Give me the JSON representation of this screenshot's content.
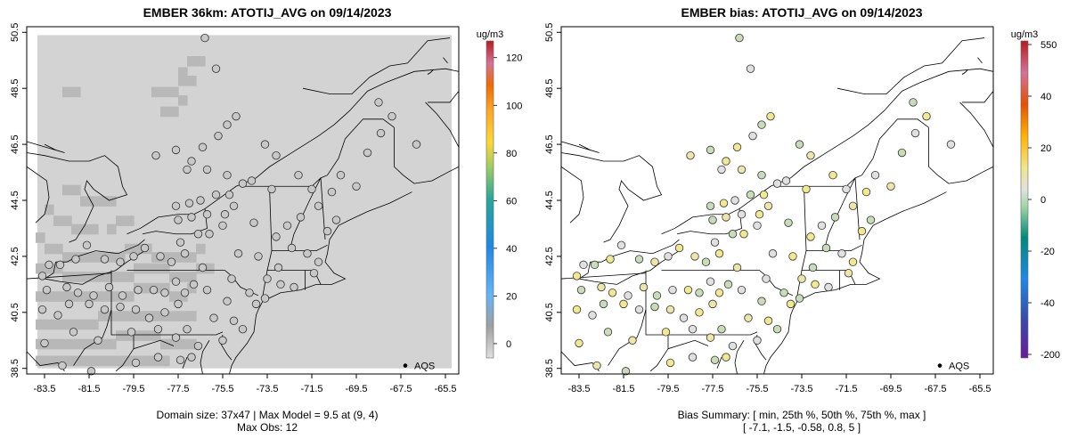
{
  "axes": {
    "x_ticks": [
      "-83.5",
      "-81.5",
      "-79.5",
      "-77.5",
      "-75.5",
      "-73.5",
      "-71.5",
      "-69.5",
      "-67.5",
      "-65.5"
    ],
    "x_values": [
      -83.5,
      -81.5,
      -79.5,
      -77.5,
      -75.5,
      -73.5,
      -71.5,
      -69.5,
      -67.5,
      -65.5
    ],
    "y_ticks": [
      "38.5",
      "40.5",
      "42.5",
      "44.5",
      "46.5",
      "48.5",
      "50.5"
    ],
    "y_values": [
      38.5,
      40.5,
      42.5,
      44.5,
      46.5,
      48.5,
      50.5
    ],
    "xlim": [
      -84.3,
      -64.9
    ],
    "ylim": [
      38.3,
      50.7
    ]
  },
  "left": {
    "title": "EMBER 36km: ATOTIJ_AVG on 09/14/2023",
    "colorbar_unit": "ug/m3",
    "colorbar_ticks": [
      "120",
      "100",
      "80",
      "60",
      "40",
      "20",
      "0"
    ],
    "colorbar_tick_values": [
      120,
      100,
      80,
      60,
      40,
      20,
      0
    ],
    "colorbar_range": [
      -6,
      127
    ],
    "legend_label": "AQS",
    "footer_line1": "Domain size: 37x47 | Max Model = 9.5 at (9, 4)",
    "footer_line2": "Max Obs: 12"
  },
  "right": {
    "title": "EMBER bias: ATOTIJ_AVG on 09/14/2023",
    "colorbar_unit": "ug/m3",
    "colorbar_ticks": [
      "550",
      "40",
      "20",
      "0",
      "-20",
      "-40",
      "-200"
    ],
    "legend_label": "AQS",
    "footer_line1": "Bias Summary: [ min, 25th %, 50th %, 75th %, max ]",
    "footer_line2": "[ -7.1,   -1.5,   -0.58,   0.8,   5 ]"
  },
  "colors": {
    "grid_base": "#d3d3d3",
    "grid_dark": "#b8b8b8",
    "site_left": "#c8c8c8",
    "bias_near_zero": "#e0e0e0",
    "bias_neg": "#c9dcb8",
    "bias_pos": "#ece6a8",
    "bias_pos_strong": "#f1e98f"
  },
  "sites": [
    [
      -76.3,
      50.3
    ],
    [
      -75.8,
      49.2
    ],
    [
      -74.9,
      47.5
    ],
    [
      -75.3,
      47.2
    ],
    [
      -75.7,
      46.8
    ],
    [
      -76.4,
      46.4
    ],
    [
      -77.6,
      46.3
    ],
    [
      -78.5,
      46.1
    ],
    [
      -76.9,
      45.9
    ],
    [
      -77.1,
      45.6
    ],
    [
      -76.2,
      45.6
    ],
    [
      -75.3,
      45.4
    ],
    [
      -74.6,
      45.1
    ],
    [
      -75.2,
      44.7
    ],
    [
      -75.8,
      44.7
    ],
    [
      -76.5,
      44.5
    ],
    [
      -77.0,
      44.4
    ],
    [
      -77.6,
      44.3
    ],
    [
      -75.0,
      44.3
    ],
    [
      -75.4,
      44.0
    ],
    [
      -76.2,
      44.0
    ],
    [
      -76.9,
      43.9
    ],
    [
      -77.5,
      43.8
    ],
    [
      -75.5,
      43.6
    ],
    [
      -76.1,
      43.3
    ],
    [
      -76.6,
      43.3
    ],
    [
      -77.4,
      43.0
    ],
    [
      -77.2,
      42.6
    ],
    [
      -77.8,
      42.3
    ],
    [
      -78.3,
      42.5
    ],
    [
      -79.0,
      42.8
    ],
    [
      -79.5,
      42.5
    ],
    [
      -80.1,
      42.3
    ],
    [
      -80.8,
      42.4
    ],
    [
      -81.6,
      42.9
    ],
    [
      -82.1,
      42.4
    ],
    [
      -82.8,
      42.2
    ],
    [
      -83.3,
      42.2
    ],
    [
      -83.6,
      41.8
    ],
    [
      -83.4,
      41.3
    ],
    [
      -82.5,
      41.4
    ],
    [
      -82.0,
      41.2
    ],
    [
      -81.3,
      41.1
    ],
    [
      -80.6,
      41.4
    ],
    [
      -80.0,
      41.1
    ],
    [
      -79.3,
      41.3
    ],
    [
      -78.6,
      41.3
    ],
    [
      -78.1,
      41.2
    ],
    [
      -77.6,
      41.6
    ],
    [
      -77.2,
      41.2
    ],
    [
      -76.8,
      41.5
    ],
    [
      -77.5,
      40.8
    ],
    [
      -78.1,
      40.5
    ],
    [
      -78.8,
      40.3
    ],
    [
      -79.4,
      40.6
    ],
    [
      -80.1,
      40.7
    ],
    [
      -80.8,
      40.6
    ],
    [
      -81.5,
      40.8
    ],
    [
      -82.4,
      40.8
    ],
    [
      -82.9,
      40.4
    ],
    [
      -83.6,
      40.6
    ],
    [
      -82.2,
      39.8
    ],
    [
      -81.1,
      39.5
    ],
    [
      -79.6,
      39.8
    ],
    [
      -78.4,
      39.9
    ],
    [
      -77.6,
      39.6
    ],
    [
      -77.1,
      39.9
    ],
    [
      -76.6,
      39.3
    ],
    [
      -76.9,
      38.9
    ],
    [
      -77.4,
      38.8
    ],
    [
      -78.4,
      38.9
    ],
    [
      -79.4,
      38.7
    ],
    [
      -81.4,
      38.4
    ],
    [
      -82.7,
      38.6
    ],
    [
      -83.5,
      39.4
    ],
    [
      -76.2,
      41.3
    ],
    [
      -75.9,
      40.3
    ],
    [
      -75.3,
      40.9
    ],
    [
      -74.8,
      42.6
    ],
    [
      -73.9,
      42.5
    ],
    [
      -74.1,
      43.7
    ],
    [
      -74.2,
      45.2
    ],
    [
      -73.3,
      44.9
    ],
    [
      -73.6,
      46.5
    ],
    [
      -73.1,
      46.1
    ],
    [
      -72.1,
      45.4
    ],
    [
      -71.5,
      44.9
    ],
    [
      -71.2,
      44.3
    ],
    [
      -72.0,
      43.9
    ],
    [
      -72.6,
      43.6
    ],
    [
      -73.1,
      43.2
    ],
    [
      -72.4,
      42.8
    ],
    [
      -71.7,
      42.6
    ],
    [
      -71.2,
      42.3
    ],
    [
      -73.0,
      42.1
    ],
    [
      -73.5,
      41.7
    ],
    [
      -72.9,
      41.5
    ],
    [
      -72.3,
      41.4
    ],
    [
      -71.4,
      41.9
    ],
    [
      -74.3,
      41.2
    ],
    [
      -75.1,
      41.7
    ],
    [
      -75.0,
      40.2
    ],
    [
      -74.6,
      39.9
    ],
    [
      -75.5,
      39.5
    ],
    [
      -74.0,
      40.8
    ],
    [
      -73.6,
      41.0
    ],
    [
      -76.4,
      42.1
    ],
    [
      -70.6,
      44.8
    ],
    [
      -70.2,
      45.4
    ],
    [
      -69.5,
      45.0
    ],
    [
      -69.0,
      46.2
    ],
    [
      -68.4,
      46.9
    ],
    [
      -67.9,
      47.5
    ],
    [
      -68.5,
      48.0
    ],
    [
      -66.8,
      46.5
    ],
    [
      -70.8,
      43.4
    ],
    [
      -70.4,
      43.8
    ]
  ],
  "map_legend_marker_lonlat": [
    -67.3,
    38.6
  ]
}
